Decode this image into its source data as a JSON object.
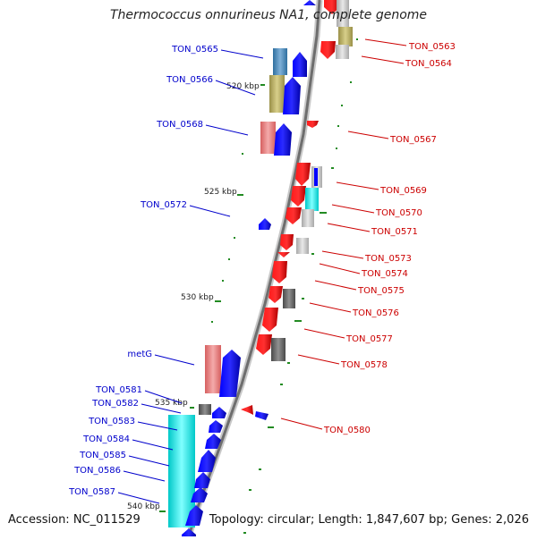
{
  "title": "Thermococcus onnurineus NA1, complete genome",
  "footer": {
    "accession": "Accession: NC_011529",
    "topology": "Topology: circular; Length: 1,847,607 bp; Genes: 2,026"
  },
  "colors": {
    "forward_label": "#0000cc",
    "reverse_label": "#cc0000",
    "kbp_tick": "#228b22",
    "axis": "#888888"
  },
  "kbp_markers": [
    {
      "label": "520 kbp"
    },
    {
      "label": "525 kbp"
    },
    {
      "label": "530 kbp"
    },
    {
      "label": "535 kbp"
    },
    {
      "label": "540 kbp"
    }
  ],
  "genes_left": [
    {
      "id": "TON_0565"
    },
    {
      "id": "TON_0566"
    },
    {
      "id": "TON_0568"
    },
    {
      "id": "TON_0572"
    },
    {
      "id": "metG"
    },
    {
      "id": "TON_0581"
    },
    {
      "id": "TON_0582"
    },
    {
      "id": "TON_0583"
    },
    {
      "id": "TON_0584"
    },
    {
      "id": "TON_0585"
    },
    {
      "id": "TON_0586"
    },
    {
      "id": "TON_0587"
    }
  ],
  "genes_right": [
    {
      "id": "TON_0563"
    },
    {
      "id": "TON_0564"
    },
    {
      "id": "TON_0567"
    },
    {
      "id": "TON_0569"
    },
    {
      "id": "TON_0570"
    },
    {
      "id": "TON_0571"
    },
    {
      "id": "TON_0573"
    },
    {
      "id": "TON_0574"
    },
    {
      "id": "TON_0575"
    },
    {
      "id": "TON_0576"
    },
    {
      "id": "TON_0577"
    },
    {
      "id": "TON_0578"
    },
    {
      "id": "TON_0580"
    }
  ]
}
